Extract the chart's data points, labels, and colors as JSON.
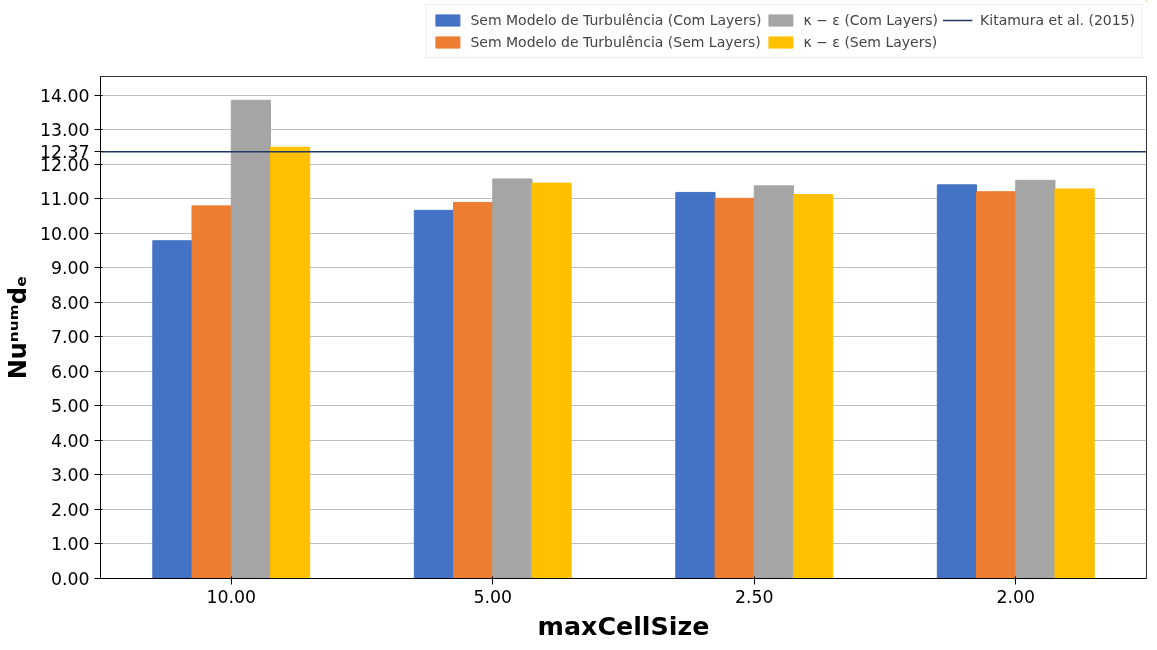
{
  "chart_data": {
    "type": "bar",
    "xlabel": "maxCellSize",
    "ylabel": "Nuⁿᵘᵐdₑ",
    "categories": [
      "10.00",
      "5.00",
      "2.50",
      "2.00"
    ],
    "series": [
      {
        "name": "Sem Modelo de Turbulência (Com Layers)",
        "color": "#4472c4",
        "values": [
          9.79,
          10.67,
          11.19,
          11.41
        ]
      },
      {
        "name": "Sem Modelo de Turbulência (Sem Layers)",
        "color": "#ed7d31",
        "values": [
          10.8,
          10.9,
          11.02,
          11.21
        ]
      },
      {
        "name": "κ − ε (Com Layers)",
        "color": "#a5a5a5",
        "values": [
          13.86,
          11.58,
          11.38,
          11.54
        ]
      },
      {
        "name": "κ − ε (Sem Layers)",
        "color": "#ffc000",
        "values": [
          12.5,
          11.46,
          11.13,
          11.29
        ]
      }
    ],
    "ref_lines": [
      {
        "axis": "y",
        "value": 12.37,
        "label": "Kitamura et al. (2015)",
        "color": "#203864"
      }
    ],
    "ylim": [
      0,
      14.55
    ],
    "yticks": [
      {
        "value": 0,
        "label": "0.00"
      },
      {
        "value": 1,
        "label": "1.00"
      },
      {
        "value": 2,
        "label": "2.00"
      },
      {
        "value": 3,
        "label": "3.00"
      },
      {
        "value": 4,
        "label": "4.00"
      },
      {
        "value": 5,
        "label": "5.00"
      },
      {
        "value": 6,
        "label": "6.00"
      },
      {
        "value": 7,
        "label": "7.00"
      },
      {
        "value": 8,
        "label": "8.00"
      },
      {
        "value": 9,
        "label": "9.00"
      },
      {
        "value": 10,
        "label": "10.00"
      },
      {
        "value": 11,
        "label": "11.00"
      },
      {
        "value": 12,
        "label": "12.00"
      },
      12.37,
      {
        "value": 13,
        "label": "13.00"
      },
      {
        "value": 14,
        "label": "14.00"
      }
    ],
    "grid": "y",
    "legend": "top"
  }
}
